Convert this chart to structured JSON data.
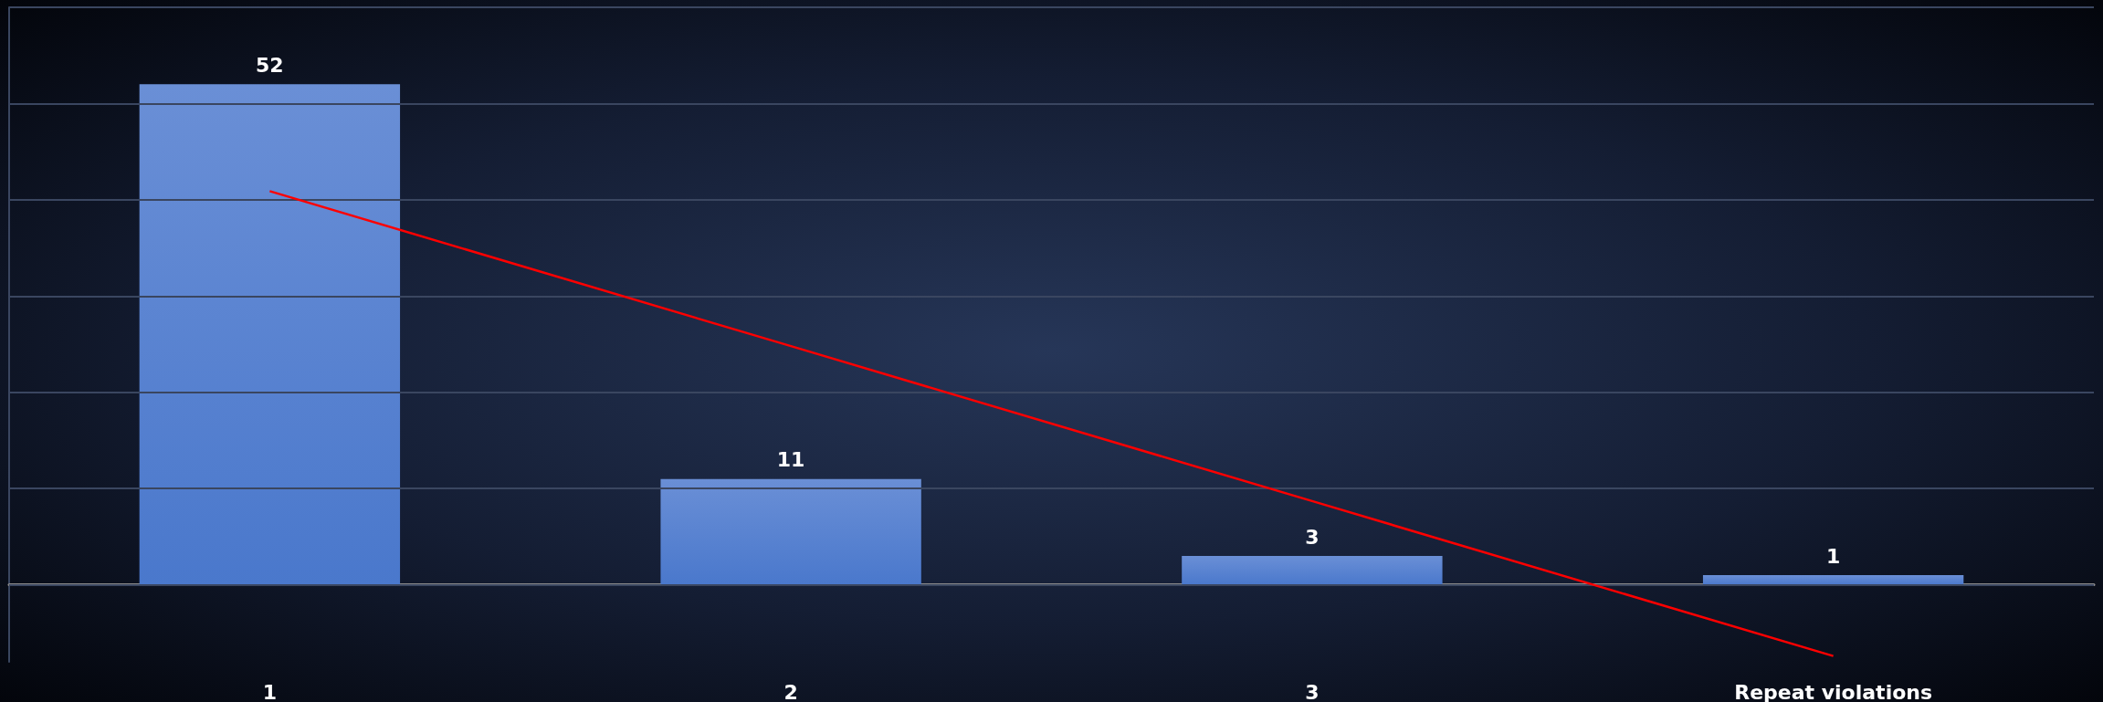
{
  "chart_data": {
    "type": "bar",
    "categories": [
      "1",
      "2",
      "3",
      "Repeat violations"
    ],
    "series": [
      {
        "color": "#4a78cc",
        "values": [
          52,
          11,
          3,
          1
        ],
        "value_labels": [
          "52",
          "11",
          "3",
          "1"
        ]
      },
      {
        "type": "line",
        "color": "#ff0000",
        "x": [
          "1",
          "2",
          "3",
          "Repeat violations"
        ],
        "values": [
          40.9,
          24.8,
          8.7,
          -7.4
        ],
        "marker": "none",
        "line_style": "solid"
      }
    ],
    "ylim": [
      -8,
      60
    ],
    "yticks": [
      {
        "value": 0,
        "label": null
      },
      {
        "value": 10,
        "label": null
      },
      {
        "value": 20,
        "label": null
      },
      {
        "value": 30,
        "label": null
      },
      {
        "value": 40,
        "label": null
      },
      {
        "value": 50,
        "label": null
      },
      {
        "value": 60,
        "label": null
      }
    ],
    "tick_labels": "x",
    "grid": "y"
  }
}
